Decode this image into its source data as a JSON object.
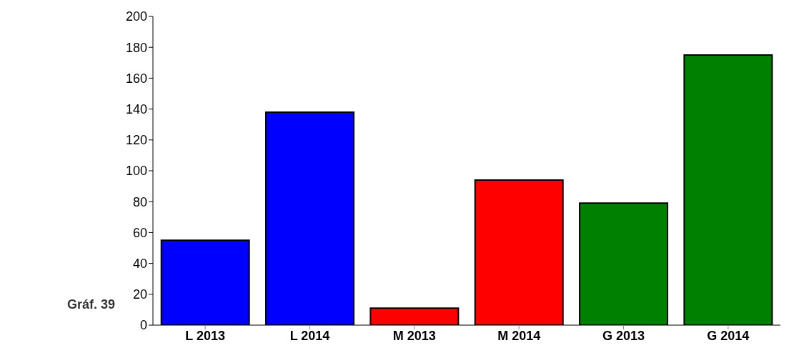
{
  "chart_data": {
    "type": "bar",
    "categories": [
      "L 2013",
      "L 2014",
      "M 2013",
      "M 2014",
      "G 2013",
      "G 2014"
    ],
    "values": [
      55,
      138,
      11,
      94,
      79,
      175
    ],
    "colors": [
      "#0000ff",
      "#0000ff",
      "#ff0000",
      "#ff0000",
      "#008000",
      "#008000"
    ],
    "ylim": [
      0,
      200
    ],
    "yticks": [
      0,
      20,
      40,
      60,
      80,
      100,
      120,
      140,
      160,
      180,
      200
    ],
    "grid": false,
    "annotations": [
      "Gráf. 39"
    ]
  }
}
